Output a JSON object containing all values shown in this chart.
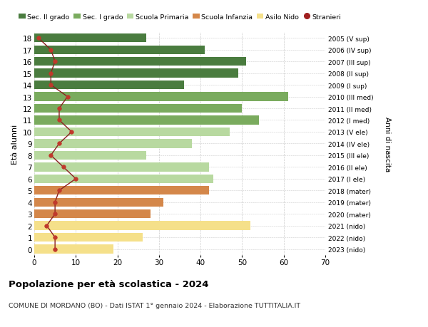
{
  "ages": [
    18,
    17,
    16,
    15,
    14,
    13,
    12,
    11,
    10,
    9,
    8,
    7,
    6,
    5,
    4,
    3,
    2,
    1,
    0
  ],
  "bar_values": [
    27,
    41,
    51,
    49,
    36,
    61,
    50,
    54,
    47,
    38,
    27,
    42,
    43,
    42,
    31,
    28,
    52,
    26,
    19
  ],
  "stranieri": [
    1,
    4,
    5,
    4,
    4,
    8,
    6,
    6,
    9,
    6,
    4,
    7,
    10,
    6,
    5,
    5,
    3,
    5,
    5
  ],
  "right_labels": [
    "2005 (V sup)",
    "2006 (IV sup)",
    "2007 (III sup)",
    "2008 (II sup)",
    "2009 (I sup)",
    "2010 (III med)",
    "2011 (II med)",
    "2012 (I med)",
    "2013 (V ele)",
    "2014 (IV ele)",
    "2015 (III ele)",
    "2016 (II ele)",
    "2017 (I ele)",
    "2018 (mater)",
    "2019 (mater)",
    "2020 (mater)",
    "2021 (nido)",
    "2022 (nido)",
    "2023 (nido)"
  ],
  "bar_colors": [
    "#4a7c3f",
    "#4a7c3f",
    "#4a7c3f",
    "#4a7c3f",
    "#4a7c3f",
    "#7aab5e",
    "#7aab5e",
    "#7aab5e",
    "#b8d9a0",
    "#b8d9a0",
    "#b8d9a0",
    "#b8d9a0",
    "#b8d9a0",
    "#d4874a",
    "#d4874a",
    "#d4874a",
    "#f5e08a",
    "#f5e08a",
    "#f5e08a"
  ],
  "legend_labels": [
    "Sec. II grado",
    "Sec. I grado",
    "Scuola Primaria",
    "Scuola Infanzia",
    "Asilo Nido",
    "Stranieri"
  ],
  "legend_colors": [
    "#4a7c3f",
    "#7aab5e",
    "#b8d9a0",
    "#d4874a",
    "#f5e08a",
    "#a02020"
  ],
  "title": "Popolazione per età scolastica - 2024",
  "subtitle": "COMUNE DI MORDANO (BO) - Dati ISTAT 1° gennaio 2024 - Elaborazione TUTTITALIA.IT",
  "ylabel_left": "Età alunni",
  "ylabel_right": "Anni di nascita",
  "xlim": [
    0,
    70
  ],
  "xticks": [
    0,
    10,
    20,
    30,
    40,
    50,
    60,
    70
  ],
  "line_color": "#8b2020",
  "dot_color": "#c0392b",
  "bg_color": "#ffffff",
  "grid_color": "#cccccc"
}
